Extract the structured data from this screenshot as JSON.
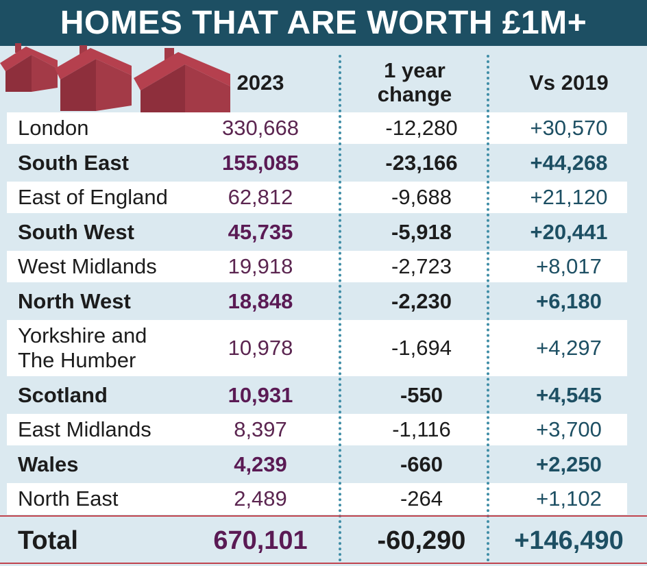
{
  "title": "HOMES THAT ARE WORTH £1M+",
  "chart_data": {
    "type": "table",
    "columns": [
      "",
      "2023",
      "1 year change",
      "Vs 2019"
    ],
    "header": {
      "c2023": "2023",
      "change": "1 year\nchange",
      "vs2019": "Vs 2019"
    },
    "rows": [
      {
        "region": "London",
        "v2023": "330,668",
        "change": "-12,280",
        "vs2019": "+30,570"
      },
      {
        "region": "South East",
        "v2023": "155,085",
        "change": "-23,166",
        "vs2019": "+44,268"
      },
      {
        "region": "East of England",
        "v2023": "62,812",
        "change": "-9,688",
        "vs2019": "+21,120"
      },
      {
        "region": "South West",
        "v2023": "45,735",
        "change": "-5,918",
        "vs2019": "+20,441"
      },
      {
        "region": "West Midlands",
        "v2023": "19,918",
        "change": "-2,723",
        "vs2019": "+8,017"
      },
      {
        "region": "North West",
        "v2023": "18,848",
        "change": "-2,230",
        "vs2019": "+6,180"
      },
      {
        "region": "Yorkshire and\nThe Humber",
        "v2023": "10,978",
        "change": "-1,694",
        "vs2019": "+4,297"
      },
      {
        "region": "Scotland",
        "v2023": "10,931",
        "change": "-550",
        "vs2019": "+4,545"
      },
      {
        "region": "East Midlands",
        "v2023": "8,397",
        "change": "-1,116",
        "vs2019": "+3,700"
      },
      {
        "region": "Wales",
        "v2023": "4,239",
        "change": "-660",
        "vs2019": "+2,250"
      },
      {
        "region": "North East",
        "v2023": "2,489",
        "change": "-264",
        "vs2019": "+1,102"
      }
    ],
    "total": {
      "label": "Total",
      "v2023": "670,101",
      "change": "-60,290",
      "vs2019": "+146,490"
    }
  },
  "colors": {
    "title_bg": "#1d4f63",
    "background": "#dbe9f0",
    "house": "#b5404e",
    "value_purple": "#5a1a54",
    "value_teal": "#1d4f63",
    "accent_red": "#c0434d"
  },
  "icons": [
    "house-icon"
  ]
}
